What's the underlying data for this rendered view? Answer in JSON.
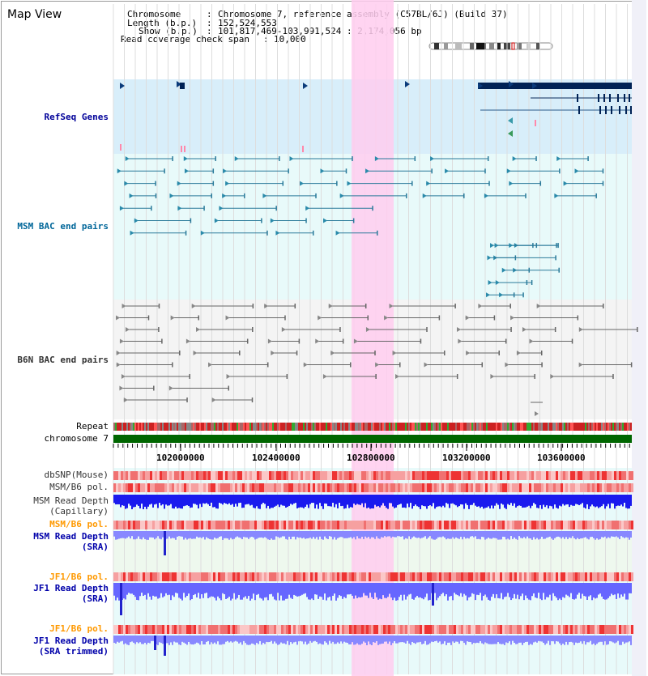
{
  "view_title": "Map View",
  "header": {
    "chromosome_key": "Chromosome",
    "chromosome_val": "Chromosome 7, reference assembly (C57BL/6J) (Build 37)",
    "length_key": "Length (b.p.)",
    "length_val": "152,524,553",
    "show_key": "Show (b.p.)",
    "show_val": "101,817,469-103,991,524 : 2,174,056 bp",
    "coverage_key": "Read coverage check span",
    "coverage_val": "10,000"
  },
  "tracks": {
    "refseq": "RefSeq Genes",
    "msm_bac": "MSM BAC end pairs",
    "b6n_bac": "B6N BAC end pairs",
    "repeat": "Repeat",
    "chromosome": "chromosome 7",
    "dbsnp": "dbSNP(Mouse)",
    "msm_b6_pol_1": "MSM/B6 pol.",
    "msm_depth_cap_1": "MSM Read Depth",
    "msm_depth_cap_2": "(Capillary)",
    "msm_b6_pol_2": "MSM/B6 pol.",
    "msm_depth_sra_1": "MSM Read Depth",
    "msm_depth_sra_2": "(SRA)",
    "jf1_b6_pol_1": "JF1/B6 pol.",
    "jf1_depth_sra_1": "JF1 Read Depth",
    "jf1_depth_sra_2": "(SRA)",
    "jf1_b6_pol_2": "JF1/B6 pol.",
    "jf1_depth_trim_1": "JF1 Read Depth",
    "jf1_depth_trim_2": "(SRA trimmed)"
  },
  "coordinates": [
    "102000000",
    "102400000",
    "102800000",
    "103200000",
    "103600000"
  ],
  "colors": {
    "refseq_label": "#000099",
    "msm_label": "#006699",
    "b6n_label": "#333333",
    "pol_label": "#ff9900",
    "depth_label": "#0000aa",
    "highlight": "#ffccee",
    "refseq_bg": "#d8eefa",
    "msm_bg": "#e8fafa",
    "chromosome_bar": "#006600",
    "depth_bar": "#1a1aee",
    "sra_bar": "#8888ff"
  }
}
